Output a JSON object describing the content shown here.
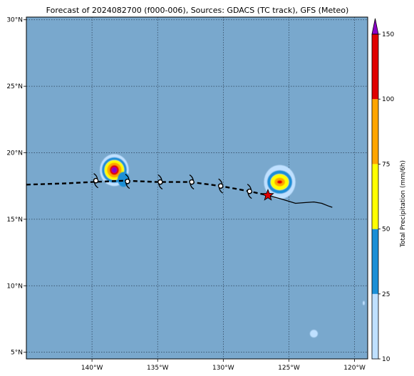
{
  "title": "Forecast of 2024082700 (f000-006), Sources: GDACS (TC track), GFS (Meteo)",
  "map": {
    "lon_range": [
      -145,
      -119
    ],
    "lat_range": [
      4.5,
      30.2
    ],
    "ocean_color": "#79a8cd",
    "gridlines": true,
    "x_ticks": [
      {
        "value": -140,
        "label": "140°W"
      },
      {
        "value": -135,
        "label": "135°W"
      },
      {
        "value": -130,
        "label": "130°W"
      },
      {
        "value": -125,
        "label": "125°W"
      },
      {
        "value": -120,
        "label": "120°W"
      }
    ],
    "y_ticks": [
      {
        "value": 5,
        "label": "5°N"
      },
      {
        "value": 10,
        "label": "10°N"
      },
      {
        "value": 15,
        "label": "15°N"
      },
      {
        "value": 20,
        "label": "20°N"
      },
      {
        "value": 25,
        "label": "25°N"
      },
      {
        "value": 30,
        "label": "30°N"
      }
    ]
  },
  "track": {
    "forecast_points": [
      [
        -145,
        17.6
      ],
      [
        -142,
        17.7
      ],
      [
        -140,
        17.8
      ],
      [
        -137.5,
        17.9
      ],
      [
        -135,
        17.8
      ],
      [
        -132.5,
        17.8
      ],
      [
        -130.2,
        17.5
      ],
      [
        -128,
        17.1
      ],
      [
        -126.6,
        16.8
      ]
    ],
    "storm_symbols": [
      [
        -139.7,
        17.9
      ],
      [
        -137.3,
        17.85
      ],
      [
        -134.8,
        17.8
      ],
      [
        -132.4,
        17.8
      ],
      [
        -130.2,
        17.5
      ],
      [
        -128.0,
        17.1
      ]
    ],
    "past_points": [
      [
        -126.6,
        16.8
      ],
      [
        -125.5,
        16.5
      ],
      [
        -124.5,
        16.2
      ],
      [
        -123.8,
        16.25
      ],
      [
        -123.1,
        16.3
      ],
      [
        -122.5,
        16.2
      ],
      [
        -122.0,
        16.0
      ],
      [
        -121.7,
        15.9
      ]
    ],
    "current_position": [
      -126.6,
      16.8
    ],
    "star_color": "#e00000"
  },
  "precip_blobs": [
    {
      "lon": -138.3,
      "lat": 18.7,
      "levels": [
        {
          "rx": 1.1,
          "ry": 0.75,
          "color": "#bfe0ff"
        },
        {
          "rx": 0.95,
          "ry": 0.6,
          "color": "#1a8fd6"
        },
        {
          "rx": 0.75,
          "ry": 0.47,
          "color": "#ffff00"
        },
        {
          "rx": 0.55,
          "ry": 0.35,
          "color": "#ffa500"
        },
        {
          "rx": 0.35,
          "ry": 0.23,
          "color": "#e00000"
        },
        {
          "rx": 0.2,
          "ry": 0.13,
          "color": "#8b00c8"
        }
      ]
    },
    {
      "lon": -137.6,
      "lat": 18.0,
      "levels": [
        {
          "rx": 0.45,
          "ry": 0.35,
          "color": "#1a8fd6"
        }
      ]
    },
    {
      "lon": -125.7,
      "lat": 17.8,
      "levels": [
        {
          "rx": 1.2,
          "ry": 0.8,
          "color": "#bfe0ff"
        },
        {
          "rx": 0.95,
          "ry": 0.55,
          "color": "#1a8fd6"
        },
        {
          "rx": 0.7,
          "ry": 0.38,
          "color": "#ffff00"
        },
        {
          "rx": 0.4,
          "ry": 0.2,
          "color": "#ffa500"
        },
        {
          "rx": 0.2,
          "ry": 0.08,
          "color": "#e00000"
        }
      ]
    },
    {
      "lon": -123.1,
      "lat": 6.4,
      "levels": [
        {
          "rx": 0.3,
          "ry": 0.18,
          "color": "#bfe0ff"
        }
      ]
    },
    {
      "lon": -119.3,
      "lat": 8.7,
      "levels": [
        {
          "rx": 0.08,
          "ry": 0.1,
          "color": "#bfe0ff"
        }
      ]
    }
  ],
  "colorbar": {
    "label": "Total Precipitation (mm/6h)",
    "bounds": [
      10,
      25,
      50,
      75,
      100,
      150
    ],
    "colors": [
      "#bfe0ff",
      "#1a8fd6",
      "#ffff00",
      "#ffa500",
      "#e00000"
    ],
    "extend_color": "#8b00c8",
    "tick_labels": [
      "10",
      "25",
      "50",
      "75",
      "100",
      "150"
    ]
  }
}
